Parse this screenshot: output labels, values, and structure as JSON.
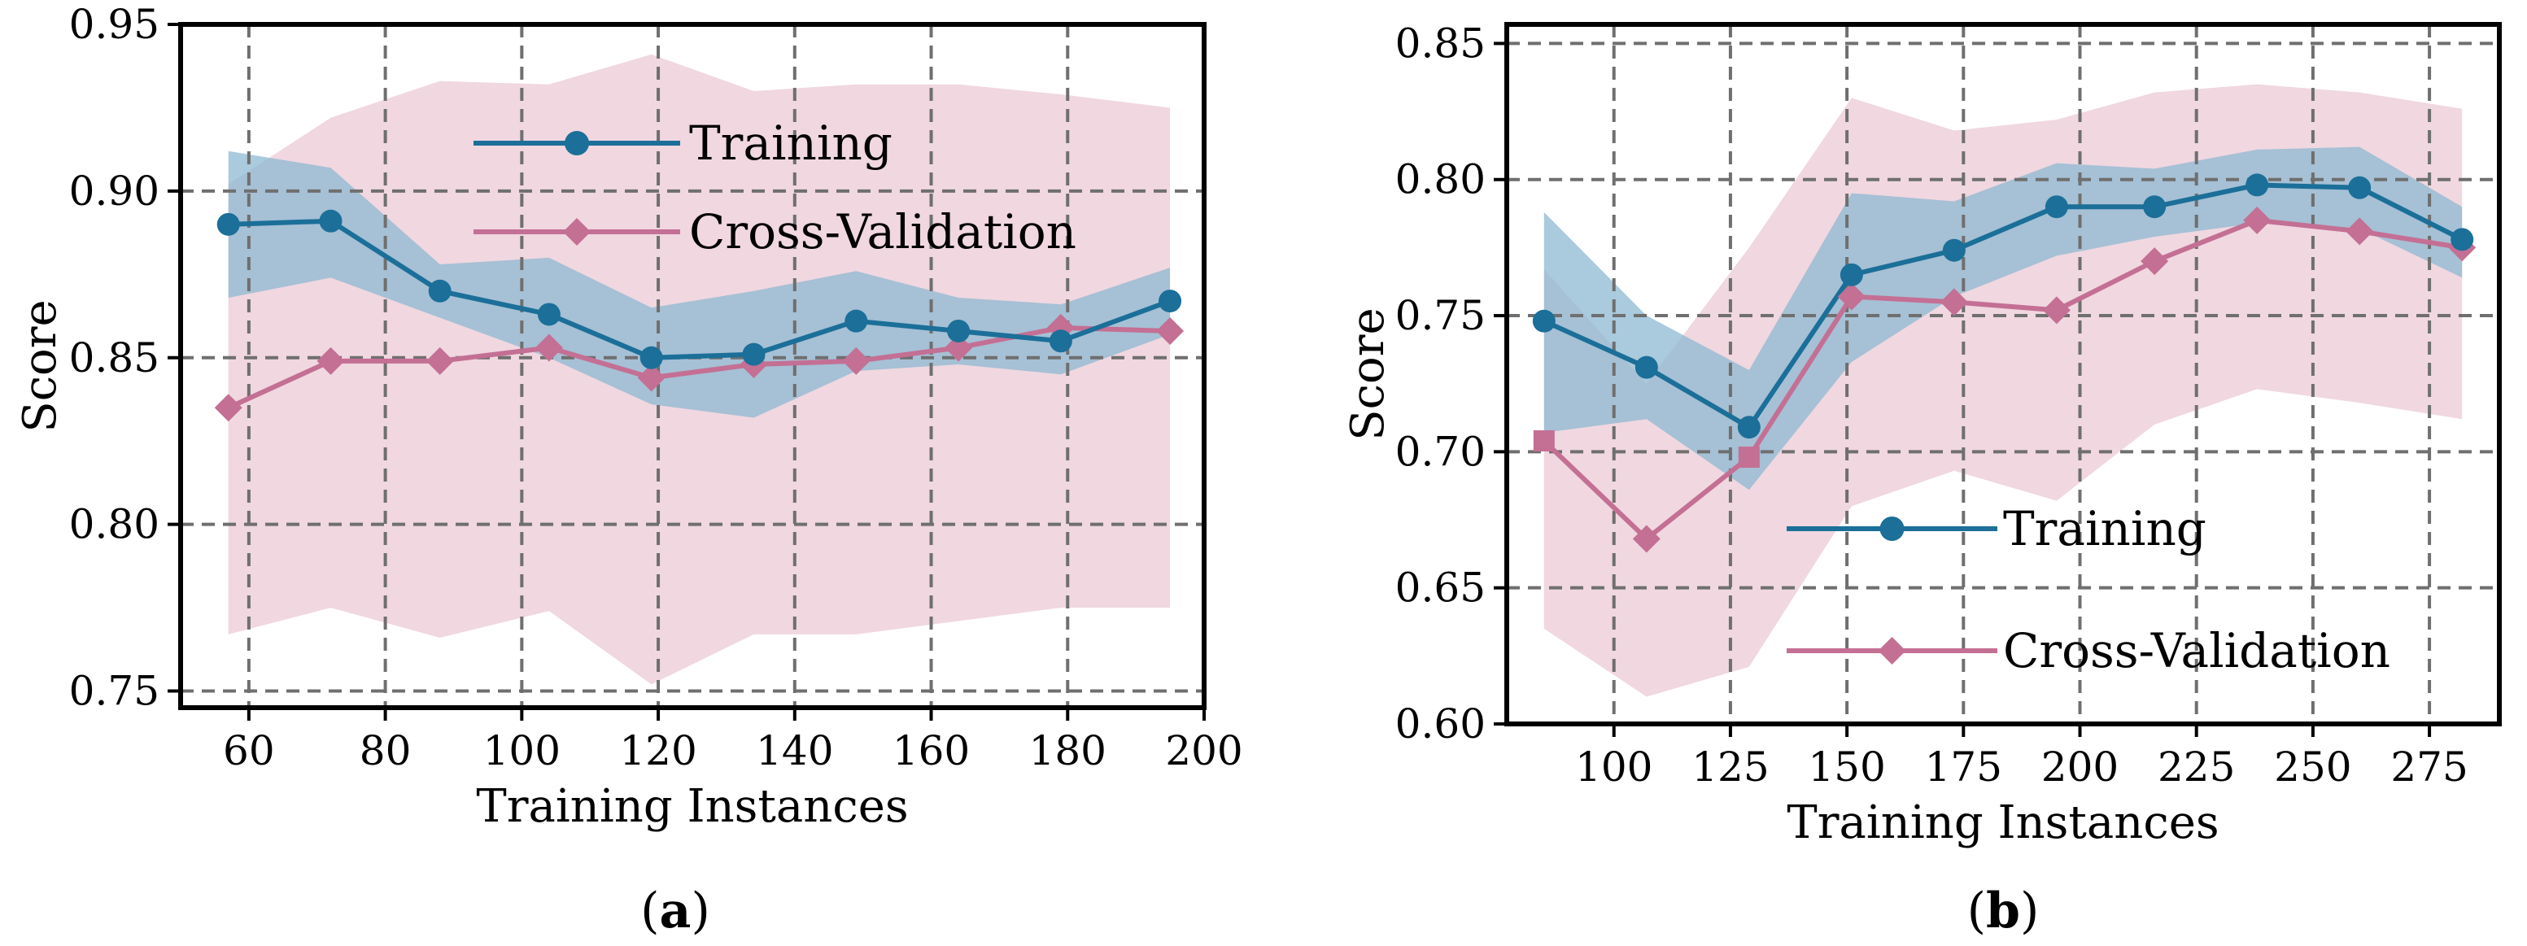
{
  "colors": {
    "training": "#1b6f99",
    "training_band": "#8eb8d2",
    "training_band_light": "#add8e6",
    "cv": "#c46f94",
    "cv_band": "#ebc9d6"
  },
  "chart_data": [
    {
      "type": "line",
      "caption_letter": "a",
      "xlabel": "Training Instances",
      "ylabel": "Score",
      "xlim": [
        50,
        200
      ],
      "ylim": [
        0.745,
        0.95
      ],
      "xticks": [
        60,
        80,
        100,
        120,
        140,
        160,
        180,
        200
      ],
      "yticks": [
        0.75,
        0.8,
        0.85,
        0.9,
        0.95
      ],
      "ytick_labels": [
        "0.75",
        "0.80",
        "0.85",
        "0.90",
        "0.95"
      ],
      "grid": true,
      "legend_position": "upper-center",
      "series": [
        {
          "name": "Training",
          "marker": "circle",
          "x": [
            57,
            72,
            88,
            104,
            119,
            134,
            149,
            164,
            179,
            195
          ],
          "y": [
            0.89,
            0.891,
            0.87,
            0.863,
            0.85,
            0.851,
            0.861,
            0.858,
            0.855,
            0.867
          ],
          "upper": [
            0.912,
            0.907,
            0.878,
            0.88,
            0.865,
            0.87,
            0.876,
            0.868,
            0.866,
            0.877
          ],
          "lower": [
            0.868,
            0.874,
            0.862,
            0.85,
            0.836,
            0.832,
            0.846,
            0.848,
            0.845,
            0.857
          ]
        },
        {
          "name": "Cross-Validation",
          "marker": "diamond",
          "x": [
            57,
            72,
            88,
            104,
            119,
            134,
            149,
            164,
            179,
            195
          ],
          "y": [
            0.835,
            0.849,
            0.849,
            0.853,
            0.844,
            0.848,
            0.849,
            0.853,
            0.859,
            0.858
          ],
          "upper": [
            0.902,
            0.922,
            0.933,
            0.932,
            0.941,
            0.93,
            0.932,
            0.932,
            0.929,
            0.925
          ],
          "lower": [
            0.767,
            0.775,
            0.766,
            0.774,
            0.752,
            0.767,
            0.767,
            0.771,
            0.775,
            0.775
          ]
        }
      ]
    },
    {
      "type": "line",
      "caption_letter": "b",
      "xlabel": "Training Instances",
      "ylabel": "Score",
      "xlim": [
        77,
        290
      ],
      "ylim": [
        0.6,
        0.857
      ],
      "xticks": [
        100,
        125,
        150,
        175,
        200,
        225,
        250,
        275
      ],
      "yticks": [
        0.6,
        0.65,
        0.7,
        0.75,
        0.8,
        0.85
      ],
      "ytick_labels": [
        "0.60",
        "0.65",
        "0.70",
        "0.75",
        "0.80",
        "0.85"
      ],
      "grid": true,
      "legend_position": "center-right",
      "series": [
        {
          "name": "Training",
          "marker": "circle",
          "x": [
            85,
            107,
            129,
            151,
            173,
            195,
            216,
            238,
            260,
            282
          ],
          "y": [
            0.748,
            0.731,
            0.709,
            0.765,
            0.774,
            0.79,
            0.79,
            0.798,
            0.797,
            0.778
          ],
          "upper": [
            0.788,
            0.75,
            0.73,
            0.795,
            0.792,
            0.806,
            0.804,
            0.811,
            0.812,
            0.79
          ],
          "lower": [
            0.707,
            0.712,
            0.686,
            0.733,
            0.757,
            0.772,
            0.779,
            0.784,
            0.782,
            0.764
          ]
        },
        {
          "name": "Cross-Validation",
          "marker": "square-diamond",
          "x": [
            85,
            107,
            129,
            151,
            173,
            195,
            216,
            238,
            260,
            282
          ],
          "y": [
            0.704,
            0.668,
            0.698,
            0.757,
            0.755,
            0.752,
            0.77,
            0.785,
            0.781,
            0.775
          ],
          "upper": [
            0.767,
            0.725,
            0.775,
            0.83,
            0.818,
            0.822,
            0.832,
            0.835,
            0.832,
            0.826
          ],
          "lower": [
            0.635,
            0.61,
            0.621,
            0.68,
            0.693,
            0.682,
            0.71,
            0.723,
            0.718,
            0.712
          ]
        }
      ]
    }
  ]
}
